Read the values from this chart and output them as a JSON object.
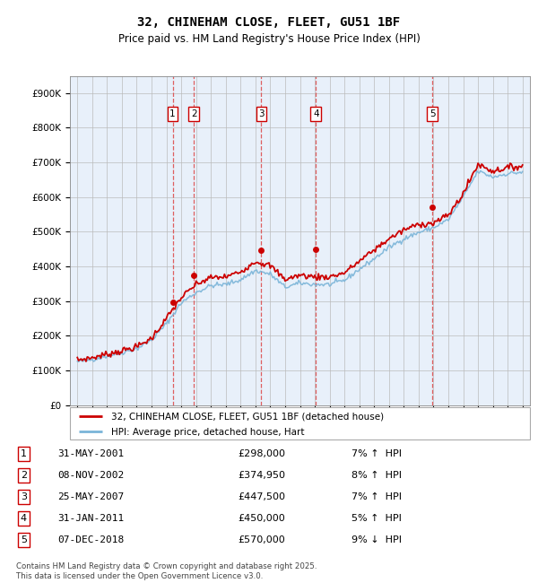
{
  "title": "32, CHINEHAM CLOSE, FLEET, GU51 1BF",
  "subtitle": "Price paid vs. HM Land Registry's House Price Index (HPI)",
  "legend_line1": "32, CHINEHAM CLOSE, FLEET, GU51 1BF (detached house)",
  "legend_line2": "HPI: Average price, detached house, Hart",
  "footer": "Contains HM Land Registry data © Crown copyright and database right 2025.\nThis data is licensed under the Open Government Licence v3.0.",
  "transactions": [
    {
      "num": 1,
      "date": "31-MAY-2001",
      "price": 298000,
      "pct": "7%",
      "dir": "↑"
    },
    {
      "num": 2,
      "date": "08-NOV-2002",
      "price": 374950,
      "pct": "8%",
      "dir": "↑"
    },
    {
      "num": 3,
      "date": "25-MAY-2007",
      "price": 447500,
      "pct": "7%",
      "dir": "↑"
    },
    {
      "num": 4,
      "date": "31-JAN-2011",
      "price": 450000,
      "pct": "5%",
      "dir": "↑"
    },
    {
      "num": 5,
      "date": "07-DEC-2018",
      "price": 570000,
      "pct": "9%",
      "dir": "↓"
    }
  ],
  "transaction_x": [
    2001.42,
    2002.85,
    2007.4,
    2011.08,
    2018.93
  ],
  "transaction_y": [
    298000,
    374950,
    447500,
    450000,
    570000
  ],
  "hpi_color": "#7ab4d8",
  "price_color": "#cc0000",
  "vline_color": "#dd4444",
  "shade_color": "#ddeeff",
  "ylim": [
    0,
    950000
  ],
  "xlim_start": 1994.5,
  "xlim_end": 2025.5,
  "yticks": [
    0,
    100000,
    200000,
    300000,
    400000,
    500000,
    600000,
    700000,
    800000,
    900000
  ],
  "ytick_labels": [
    "£0",
    "£100K",
    "£200K",
    "£300K",
    "£400K",
    "£500K",
    "£600K",
    "£700K",
    "£800K",
    "£900K"
  ],
  "xticks": [
    1995,
    1996,
    1997,
    1998,
    1999,
    2000,
    2001,
    2002,
    2003,
    2004,
    2005,
    2006,
    2007,
    2008,
    2009,
    2010,
    2011,
    2012,
    2013,
    2014,
    2015,
    2016,
    2017,
    2018,
    2019,
    2020,
    2021,
    2022,
    2023,
    2024,
    2025
  ],
  "hpi_keypoints": [
    [
      1995,
      125000
    ],
    [
      1996,
      132000
    ],
    [
      1997,
      142000
    ],
    [
      1998,
      152000
    ],
    [
      1999,
      163000
    ],
    [
      2000,
      188000
    ],
    [
      2001,
      235000
    ],
    [
      2002,
      295000
    ],
    [
      2003,
      325000
    ],
    [
      2004,
      345000
    ],
    [
      2005,
      348000
    ],
    [
      2006,
      362000
    ],
    [
      2007,
      388000
    ],
    [
      2008,
      378000
    ],
    [
      2009,
      340000
    ],
    [
      2010,
      352000
    ],
    [
      2011,
      348000
    ],
    [
      2012,
      348000
    ],
    [
      2013,
      360000
    ],
    [
      2014,
      392000
    ],
    [
      2015,
      422000
    ],
    [
      2016,
      455000
    ],
    [
      2017,
      480000
    ],
    [
      2018,
      498000
    ],
    [
      2019,
      512000
    ],
    [
      2020,
      535000
    ],
    [
      2021,
      600000
    ],
    [
      2022,
      675000
    ],
    [
      2023,
      658000
    ],
    [
      2024,
      668000
    ],
    [
      2025,
      672000
    ]
  ],
  "price_keypoints": [
    [
      1995,
      130000
    ],
    [
      1996,
      137000
    ],
    [
      1997,
      147000
    ],
    [
      1998,
      157000
    ],
    [
      1999,
      168000
    ],
    [
      2000,
      193000
    ],
    [
      2001,
      250000
    ],
    [
      2002,
      310000
    ],
    [
      2003,
      348000
    ],
    [
      2004,
      368000
    ],
    [
      2005,
      370000
    ],
    [
      2006,
      385000
    ],
    [
      2007,
      415000
    ],
    [
      2008,
      402000
    ],
    [
      2009,
      363000
    ],
    [
      2010,
      375000
    ],
    [
      2011,
      370000
    ],
    [
      2012,
      370000
    ],
    [
      2013,
      382000
    ],
    [
      2014,
      415000
    ],
    [
      2015,
      448000
    ],
    [
      2016,
      480000
    ],
    [
      2017,
      505000
    ],
    [
      2018,
      522000
    ],
    [
      2019,
      525000
    ],
    [
      2020,
      548000
    ],
    [
      2021,
      610000
    ],
    [
      2022,
      695000
    ],
    [
      2023,
      675000
    ],
    [
      2024,
      685000
    ],
    [
      2025,
      690000
    ]
  ]
}
